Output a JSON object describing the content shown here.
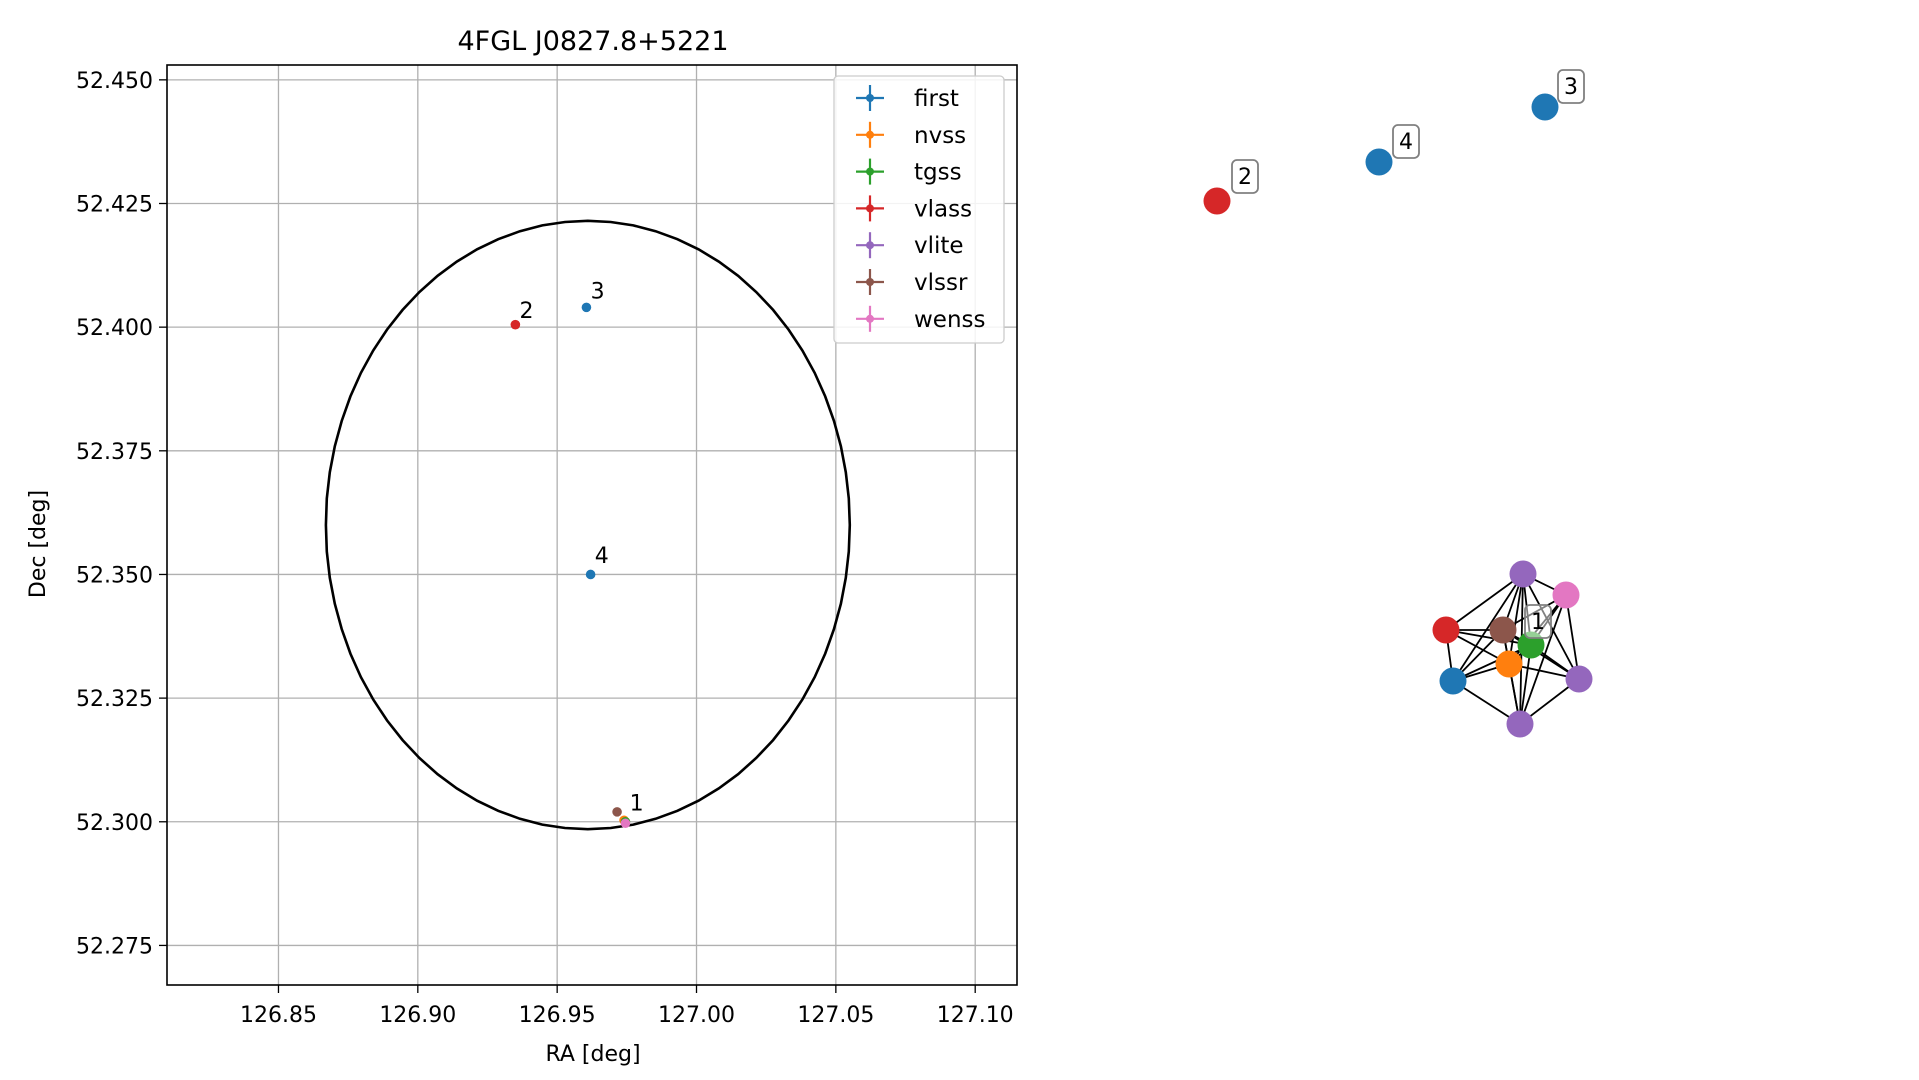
{
  "chart_data": {
    "type": "scatter",
    "title": "4FGL J0827.8+5221",
    "xlabel": "RA [deg]",
    "ylabel": "Dec [deg]",
    "xlim": [
      126.81,
      127.115
    ],
    "ylim": [
      52.267,
      52.453
    ],
    "x_ticks": [
      "126.85",
      "126.90",
      "126.95",
      "127.00",
      "127.05",
      "127.10"
    ],
    "y_ticks": [
      "52.275",
      "52.300",
      "52.325",
      "52.350",
      "52.375",
      "52.400",
      "52.425",
      "52.450"
    ],
    "grid": true,
    "legend_position": "upper right",
    "legend": [
      {
        "name": "first",
        "color": "#1f77b4"
      },
      {
        "name": "nvss",
        "color": "#ff7f0e"
      },
      {
        "name": "tgss",
        "color": "#2ca02c"
      },
      {
        "name": "vlass",
        "color": "#d62728"
      },
      {
        "name": "vlite",
        "color": "#9467bd"
      },
      {
        "name": "vlssr",
        "color": "#8c564b"
      },
      {
        "name": "wenss",
        "color": "#e377c2"
      }
    ],
    "error_ellipse": {
      "center": [
        126.961,
        52.36
      ],
      "semi_axis_ra": 0.094,
      "semi_axis_dec": 0.0615,
      "color": "#000000"
    },
    "points": [
      {
        "survey": "vlass",
        "color": "#d62728",
        "x": 126.935,
        "y": 52.4005
      },
      {
        "survey": "first",
        "color": "#1f77b4",
        "x": 126.9605,
        "y": 52.404
      },
      {
        "survey": "first",
        "color": "#1f77b4",
        "x": 126.962,
        "y": 52.35
      },
      {
        "survey": "vlssr",
        "color": "#8c564b",
        "x": 126.9715,
        "y": 52.302
      },
      {
        "survey": "nvss",
        "color": "#ff7f0e",
        "x": 126.974,
        "y": 52.3003
      },
      {
        "survey": "tgss",
        "color": "#2ca02c",
        "x": 126.9745,
        "y": 52.3
      },
      {
        "survey": "wenss",
        "color": "#e377c2",
        "x": 126.9745,
        "y": 52.2997
      }
    ],
    "annotations": [
      {
        "text": "1",
        "x": 126.976,
        "y": 52.3015
      },
      {
        "text": "2",
        "x": 126.9365,
        "y": 52.401
      },
      {
        "text": "3",
        "x": 126.962,
        "y": 52.405
      },
      {
        "text": "4",
        "x": 126.9635,
        "y": 52.3515
      }
    ]
  },
  "network_graph": {
    "nodes": [
      {
        "id": "a",
        "survey": "vlass",
        "color": "#d62728"
      },
      {
        "id": "b",
        "survey": "first",
        "color": "#1f77b4"
      },
      {
        "id": "c",
        "survey": "first",
        "color": "#1f77b4"
      },
      {
        "id": "n1",
        "survey": "vlite",
        "color": "#9467bd"
      },
      {
        "id": "n2",
        "survey": "wenss",
        "color": "#e377c2"
      },
      {
        "id": "n3",
        "survey": "vlass",
        "color": "#d62728"
      },
      {
        "id": "n4",
        "survey": "vlssr",
        "color": "#8c564b"
      },
      {
        "id": "n5",
        "survey": "tgss",
        "color": "#2ca02c"
      },
      {
        "id": "n6",
        "survey": "first",
        "color": "#1f77b4"
      },
      {
        "id": "n7",
        "survey": "nvss",
        "color": "#ff7f0e"
      },
      {
        "id": "n8",
        "survey": "vlite",
        "color": "#9467bd"
      },
      {
        "id": "n9",
        "survey": "vlite",
        "color": "#9467bd"
      }
    ],
    "labels": [
      {
        "text": "2",
        "node": "a"
      },
      {
        "text": "4",
        "node": "b"
      },
      {
        "text": "3",
        "node": "c"
      },
      {
        "text": "1",
        "node": "n5"
      }
    ],
    "edges": [
      [
        "n3",
        "n4"
      ],
      [
        "n3",
        "n5"
      ],
      [
        "n3",
        "n6"
      ],
      [
        "n3",
        "n7"
      ],
      [
        "n3",
        "n1"
      ],
      [
        "n4",
        "n5"
      ],
      [
        "n4",
        "n6"
      ],
      [
        "n4",
        "n7"
      ],
      [
        "n4",
        "n1"
      ],
      [
        "n4",
        "n2"
      ],
      [
        "n4",
        "n8"
      ],
      [
        "n4",
        "n9"
      ],
      [
        "n5",
        "n1"
      ],
      [
        "n5",
        "n2"
      ],
      [
        "n5",
        "n7"
      ],
      [
        "n5",
        "n8"
      ],
      [
        "n5",
        "n9"
      ],
      [
        "n5",
        "n6"
      ],
      [
        "n6",
        "n7"
      ],
      [
        "n6",
        "n1"
      ],
      [
        "n6",
        "n9"
      ],
      [
        "n7",
        "n1"
      ],
      [
        "n7",
        "n2"
      ],
      [
        "n7",
        "n8"
      ],
      [
        "n7",
        "n9"
      ],
      [
        "n1",
        "n2"
      ],
      [
        "n1",
        "n8"
      ],
      [
        "n2",
        "n8"
      ],
      [
        "n2",
        "n9"
      ],
      [
        "n8",
        "n9"
      ],
      [
        "n1",
        "n9"
      ]
    ]
  }
}
